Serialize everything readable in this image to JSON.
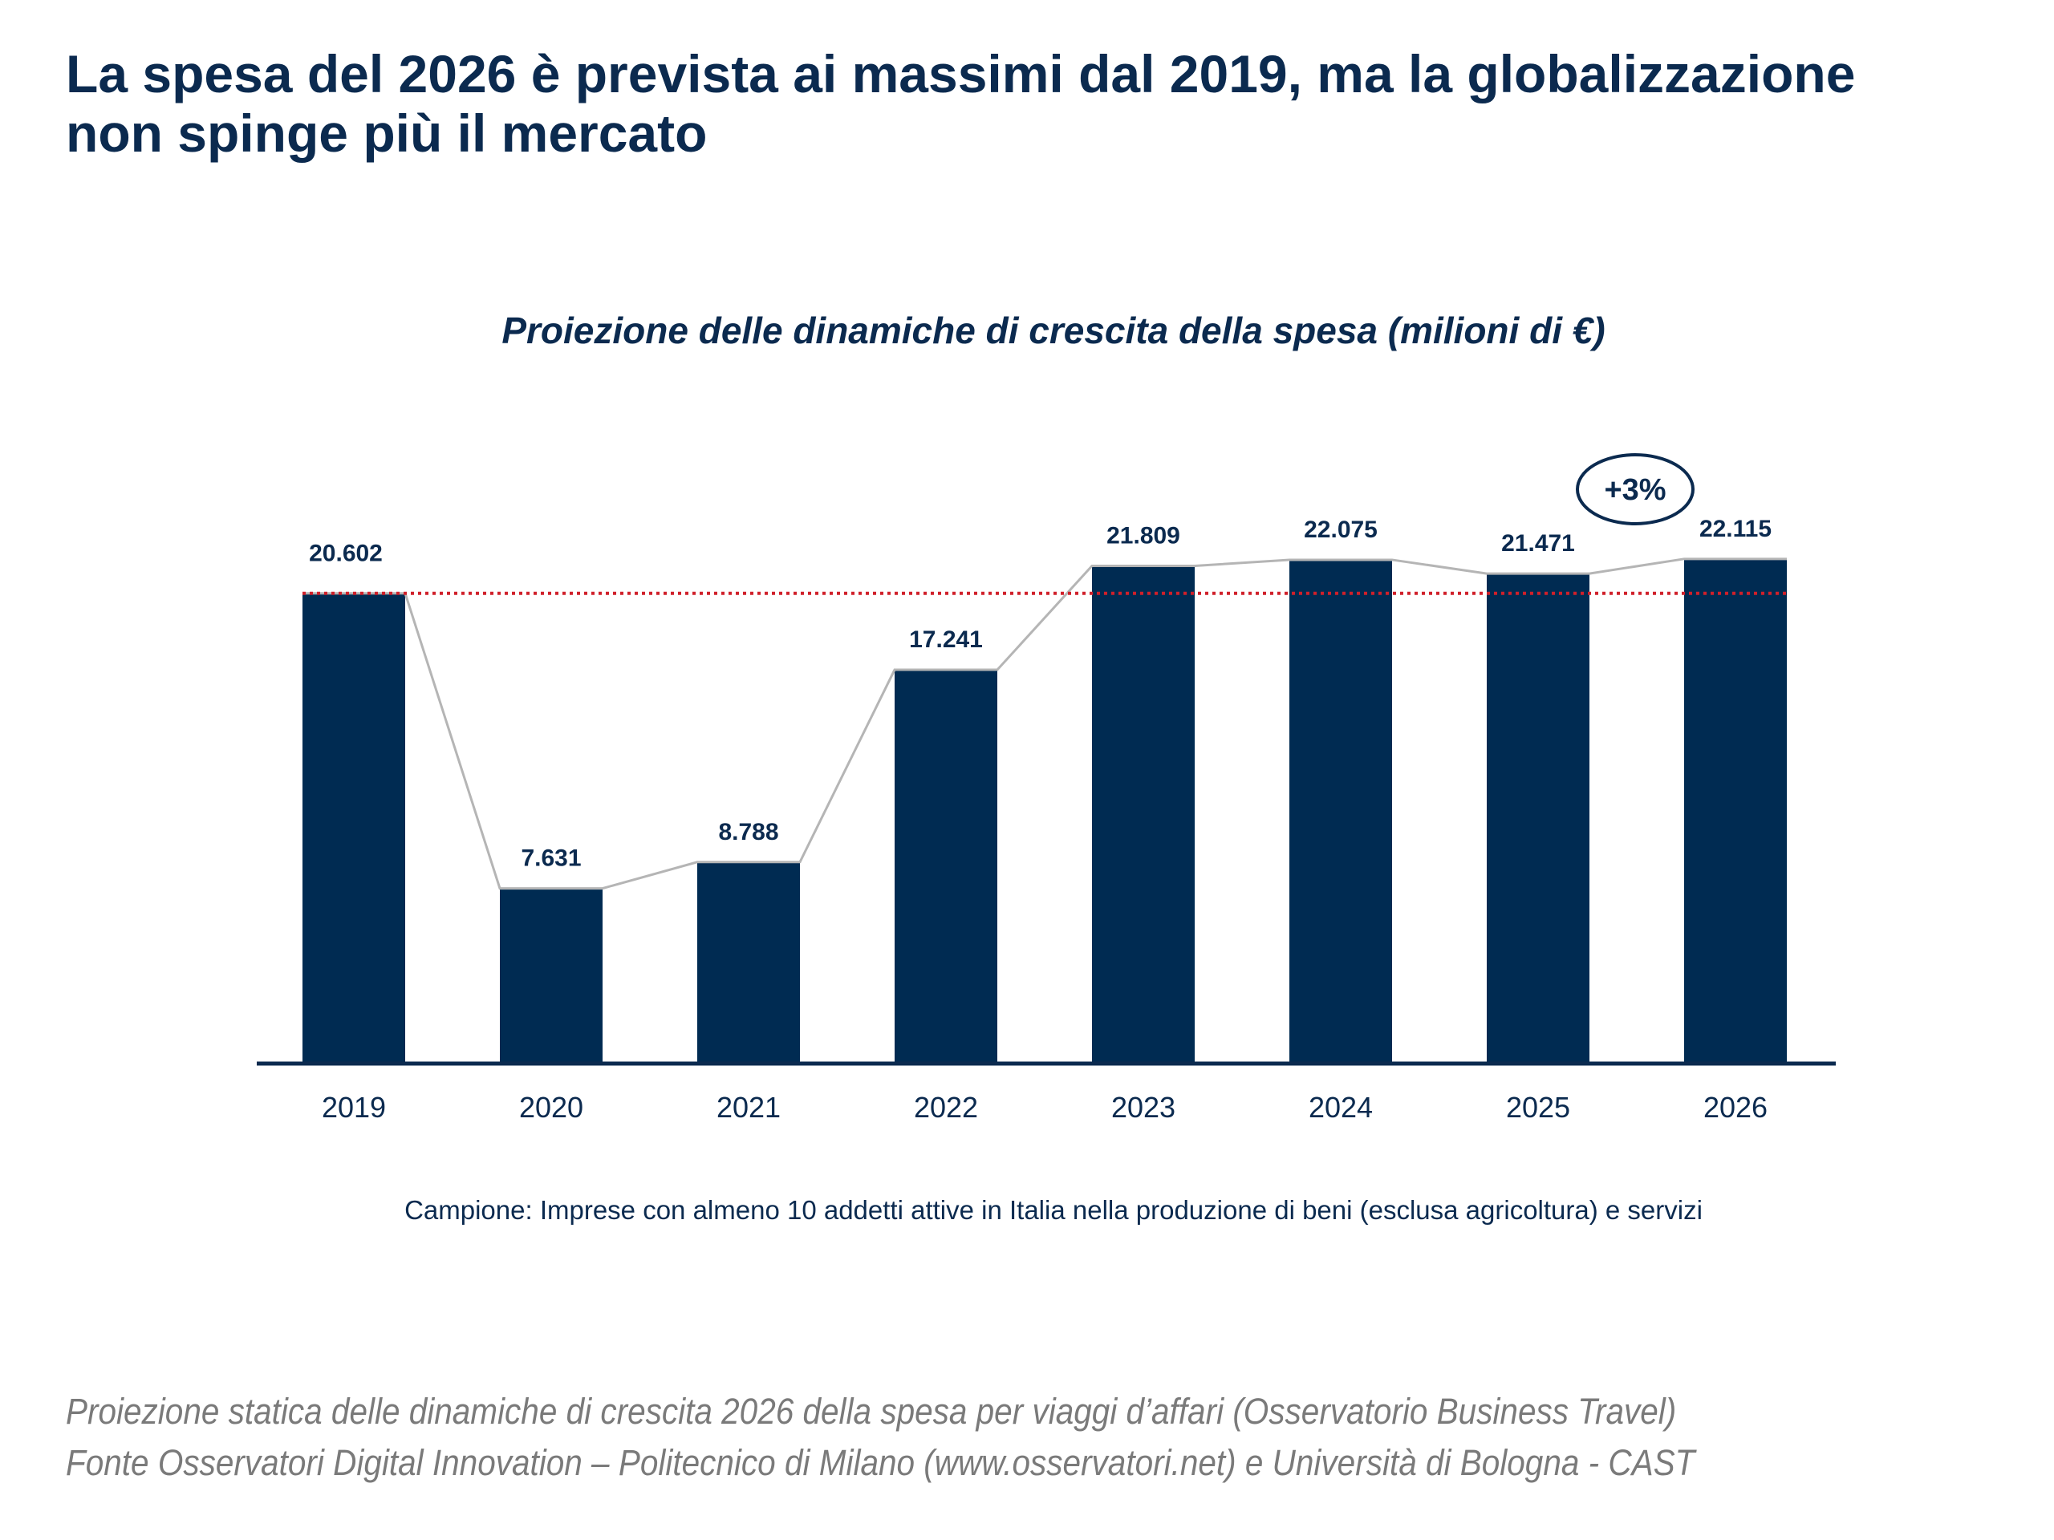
{
  "title": "La spesa del 2026 è prevista ai massimi dal 2019, ma la globalizzazione non spinge più il mercato",
  "chart_data": {
    "type": "bar",
    "title": "Proiezione delle dinamiche di crescita della spesa (milioni di €)",
    "categories": [
      "2019",
      "2020",
      "2021",
      "2022",
      "2023",
      "2024",
      "2025",
      "2026"
    ],
    "values": [
      20602,
      7631,
      8788,
      17241,
      21809,
      22075,
      21471,
      22115
    ],
    "value_labels": [
      "20.602",
      "7.631",
      "8.788",
      "17.241",
      "21.809",
      "22.075",
      "21.471",
      "22.115"
    ],
    "ylim": [
      0,
      22115
    ],
    "reference_line": {
      "value": 20602,
      "color": "#d0202a",
      "style": "dotted"
    },
    "connecting_line": true,
    "annotation": {
      "text": "+3%",
      "between": [
        "2025",
        "2026"
      ]
    },
    "bar_color": "#002b52",
    "grid": false
  },
  "note": "Campione: Imprese con almeno 10 addetti attive in Italia nella produzione di beni (esclusa agricoltura) e servizi",
  "footer": {
    "line1": "Proiezione statica delle dinamiche di crescita 2026 della spesa per viaggi d’affari (Osservatorio Business Travel)",
    "line2": "Fonte Osservatori Digital Innovation – Politecnico di Milano (www.osservatori.net) e Università di Bologna - CAST"
  }
}
